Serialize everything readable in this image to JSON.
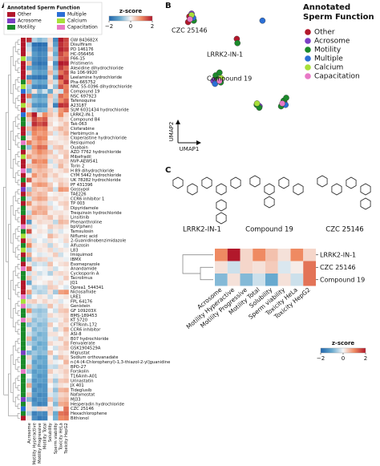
{
  "panel_labels": [
    "A",
    "B",
    "C"
  ],
  "chart_data": [
    {
      "type": "heatmap",
      "legend_title": "Annotated Sperm Function",
      "functions": [
        {
          "name": "Other",
          "color": "#b2182b"
        },
        {
          "name": "Acrosome",
          "color": "#7b3fc4"
        },
        {
          "name": "Motility",
          "color": "#1b8a2a"
        },
        {
          "name": "Multiple",
          "color": "#2b6fd6"
        },
        {
          "name": "Calcium",
          "color": "#a8e03a"
        },
        {
          "name": "Capacitation",
          "color": "#e879c6"
        }
      ],
      "colorbar": {
        "title": "z-score",
        "lim": [
          -2,
          2
        ],
        "ticks": [
          {
            "value": -2,
            "label": "−2"
          },
          0,
          2
        ]
      },
      "columns": [
        "Acrosome",
        "Motility Hyperactive",
        "Motility Progressive",
        "Motility Total",
        "Solubility",
        "Sperm viability",
        "Toxicity HeLa",
        "Toxicity HepG2"
      ],
      "rows": [
        "GW 843682X",
        "Disulfiram",
        "PD 146176",
        "HC-056456",
        "F66-15",
        "Pristimerin",
        "Alexidine dihydrochloride",
        "Ro 106-9920",
        "Leelamine hydrochloride",
        "Pha-665752",
        "NNC 55-0396 dihydrochloride",
        "Compound 19",
        "NSC 697923",
        "Tafenoquine",
        "A23187",
        "SLM 6031434 hydrochloride",
        "LRRK2-IN-1",
        "Compound B4",
        "Tak-063",
        "Clofarabine",
        "Herbimycin a",
        "Cloperastine hydrochloride",
        "Resiquimod",
        "Ouabain",
        "AZD 7762 hydrochloride",
        "Mibefradil",
        "NVP-AEW541",
        "Torin 2",
        "H 89 dihydrochloride",
        "CYM 5442 hydrochloride",
        "UK 78282 hydrochloride",
        "PF 431396",
        "Gossypol",
        "TAE226",
        "CCR6 inhibitor 1",
        "TP 003",
        "Dipyridamole",
        "Trequinsin hydrochloride",
        "Linsitinib",
        "Phenanthroline",
        "bpV(phen)",
        "Tamsulosin",
        "Niflumic acid",
        "2-Guanidinobenzimidazole",
        "Alfuzosin",
        "L83",
        "Imiquimod",
        "IBMX",
        "Esomeprazole",
        "Anandamide",
        "Cyclosporin A",
        "Tacrolimus",
        "JQ1",
        "Oprea1_544341",
        "Niclosamide",
        "LRE1",
        "FPL 64176",
        "Genistein",
        "GF 109203X",
        "BMS-189453",
        "KT 5720",
        "CFTRinh-172",
        "CCR6 inhibitor",
        "ASI-8",
        "B07 hydrochloride",
        "Fenvalerate",
        "GSK1904529A",
        "Miglustat",
        "Sodium orthovanadate",
        "n-[4-(4-Chlorophenyl)-1,3-thiazol-2-yl]guanidine",
        "BPO-27",
        "Forskolin",
        "T16Ainh-A01",
        "Urinastatin",
        "JX 401",
        "Tideglusib",
        "Nafamostat",
        "MJ33",
        "Hesperadin hydrochloride",
        "CZC 25146",
        "Hexachlorophene",
        "Bithionol"
      ],
      "row_functions": [
        "Other",
        "Other",
        "Other",
        "Other",
        "Calcium",
        "Other",
        "Other",
        "Other",
        "Other",
        "Motility",
        "Calcium",
        "Multiple",
        "Other",
        "Other",
        "Calcium",
        "Other",
        "Multiple",
        "Motility",
        "Motility",
        "Other",
        "Other",
        "Motility",
        "Capacitation",
        "Motility",
        "Other",
        "Calcium",
        "Other",
        "Other",
        "Capacitation",
        "Other",
        "Motility",
        "Other",
        "Acrosome",
        "Other",
        "Motility",
        "Other",
        "Motility",
        "Motility",
        "Other",
        "Other",
        "Capacitation",
        "Motility",
        "Calcium",
        "Other",
        "Motility",
        "Calcium",
        "Other",
        "Motility",
        "Other",
        "Capacitation",
        "Motility",
        "Motility",
        "Other",
        "Other",
        "Other",
        "Capacitation",
        "Calcium",
        "Capacitation",
        "Motility",
        "Motility",
        "Capacitation",
        "Motility",
        "Motility",
        "Motility",
        "Motility",
        "Motility",
        "Motility",
        "Acrosome",
        "Motility",
        "Motility",
        "Motility",
        "Capacitation",
        "Motility",
        "Motility",
        "Motility",
        "Motility",
        "Motility",
        "Acrosome",
        "Motility",
        "Multiple",
        "Motility",
        "Other"
      ],
      "values": [
        [
          1.8,
          -0.5,
          -0.8,
          -0.6,
          0.3,
          -1.5,
          2.0,
          1.6
        ],
        [
          -0.5,
          -1.8,
          -1.9,
          -1.8,
          0.2,
          -1.2,
          1.8,
          1.5
        ],
        [
          -0.3,
          -1.5,
          -1.7,
          -1.6,
          0.5,
          -0.8,
          1.9,
          1.7
        ],
        [
          0.2,
          -1.2,
          -1.5,
          -1.4,
          0.1,
          -1.0,
          1.6,
          1.2
        ],
        [
          -0.8,
          -1.4,
          -1.6,
          -1.5,
          0.4,
          -0.6,
          1.4,
          1.5
        ],
        [
          0.6,
          -1.6,
          -1.8,
          -1.7,
          0.0,
          -1.4,
          2.0,
          1.9
        ],
        [
          -1.0,
          -1.3,
          -1.5,
          -1.4,
          0.3,
          -0.9,
          1.7,
          1.3
        ],
        [
          0.3,
          -1.0,
          -1.2,
          -1.1,
          0.6,
          -0.5,
          1.2,
          1.6
        ],
        [
          -1.5,
          -1.7,
          -1.8,
          -1.7,
          0.2,
          -1.1,
          1.9,
          1.4
        ],
        [
          0.8,
          -0.9,
          -1.1,
          -1.0,
          0.4,
          -0.3,
          1.1,
          1.8
        ],
        [
          -0.6,
          -1.5,
          -1.6,
          -1.5,
          0.1,
          -0.7,
          1.5,
          1.1
        ],
        [
          -0.8,
          0.2,
          -0.8,
          -0.3,
          -1.0,
          0.2,
          -0.3,
          1.2
        ],
        [
          1.2,
          -1.1,
          -1.3,
          -1.2,
          0.5,
          -0.4,
          1.3,
          1.0
        ],
        [
          -0.4,
          -0.8,
          -1.0,
          -0.9,
          0.3,
          -0.6,
          1.0,
          1.4
        ],
        [
          0.5,
          -1.3,
          -1.4,
          -1.3,
          0.2,
          -1.6,
          1.8,
          1.7
        ],
        [
          -0.2,
          -0.6,
          -0.9,
          -0.8,
          0.4,
          -0.3,
          0.9,
          1.2
        ],
        [
          1.0,
          2.0,
          0.3,
          1.0,
          0.5,
          0.2,
          1.0,
          0.3
        ],
        [
          0.4,
          1.6,
          1.2,
          1.4,
          0.2,
          0.1,
          0.4,
          0.2
        ],
        [
          -0.3,
          1.8,
          1.5,
          1.7,
          0.3,
          0.0,
          0.2,
          0.5
        ],
        [
          0.6,
          1.2,
          1.0,
          1.1,
          0.1,
          0.3,
          0.6,
          0.4
        ],
        [
          -0.5,
          1.0,
          0.8,
          0.9,
          0.4,
          -0.2,
          0.3,
          0.6
        ],
        [
          0.2,
          0.8,
          1.1,
          1.0,
          0.0,
          0.1,
          0.2,
          0.3
        ],
        [
          1.1,
          0.6,
          0.9,
          0.7,
          0.3,
          0.2,
          0.1,
          0.2
        ],
        [
          -0.7,
          0.9,
          1.3,
          1.2,
          -0.2,
          0.4,
          0.5,
          0.1
        ],
        [
          0.3,
          0.7,
          1.0,
          0.8,
          0.5,
          -0.1,
          0.3,
          0.4
        ],
        [
          0.8,
          0.5,
          0.7,
          0.6,
          0.2,
          0.3,
          0.0,
          0.5
        ],
        [
          -0.2,
          1.1,
          0.9,
          1.0,
          -0.3,
          0.2,
          0.4,
          0.3
        ],
        [
          0.5,
          0.6,
          0.8,
          0.7,
          0.1,
          -0.2,
          0.6,
          0.2
        ],
        [
          -0.9,
          0.4,
          0.6,
          0.5,
          0.3,
          0.1,
          0.2,
          0.4
        ],
        [
          0.1,
          0.9,
          0.5,
          0.7,
          0.2,
          0.4,
          0.1,
          0.0
        ],
        [
          1.4,
          0.3,
          0.5,
          0.4,
          -0.1,
          0.2,
          0.3,
          0.2
        ],
        [
          0.0,
          0.7,
          0.9,
          0.8,
          0.4,
          0.0,
          0.5,
          0.3
        ],
        [
          -0.6,
          0.5,
          0.3,
          0.4,
          0.6,
          -0.3,
          0.9,
          0.8
        ],
        [
          0.7,
          0.4,
          0.6,
          0.5,
          0.0,
          0.1,
          0.2,
          0.1
        ],
        [
          -0.3,
          0.6,
          0.8,
          0.7,
          0.2,
          0.3,
          0.1,
          0.2
        ],
        [
          0.9,
          0.2,
          0.4,
          0.3,
          -0.2,
          0.0,
          0.3,
          0.4
        ],
        [
          0.2,
          0.5,
          0.7,
          0.6,
          0.3,
          -0.1,
          0.0,
          0.3
        ],
        [
          -0.4,
          0.8,
          0.6,
          0.7,
          0.1,
          0.2,
          0.2,
          0.1
        ],
        [
          0.6,
          0.3,
          0.2,
          0.3,
          0.5,
          0.1,
          0.4,
          0.2
        ],
        [
          -1.2,
          0.1,
          0.3,
          0.2,
          0.2,
          -0.4,
          0.6,
          0.5
        ],
        [
          0.3,
          -0.2,
          0.1,
          0.0,
          0.4,
          0.2,
          0.3,
          0.1
        ],
        [
          1.5,
          0.0,
          0.2,
          0.1,
          -0.3,
          0.1,
          -0.2,
          0.0
        ],
        [
          -0.2,
          0.1,
          -0.1,
          0.0,
          0.6,
          0.3,
          0.1,
          0.2
        ],
        [
          0.4,
          -0.3,
          0.0,
          -0.2,
          0.2,
          0.0,
          -0.1,
          0.3
        ],
        [
          1.0,
          0.2,
          0.1,
          0.2,
          -0.4,
          0.2,
          0.0,
          -0.2
        ],
        [
          -0.5,
          -0.1,
          0.2,
          0.1,
          0.3,
          -0.2,
          0.2,
          0.1
        ],
        [
          0.7,
          0.0,
          -0.2,
          -0.1,
          0.1,
          0.4,
          -0.3,
          0.0
        ],
        [
          -0.8,
          0.3,
          0.4,
          0.3,
          -0.2,
          0.1,
          0.1,
          -0.1
        ],
        [
          0.2,
          -0.4,
          -0.2,
          -0.3,
          0.5,
          0.0,
          0.2,
          0.3
        ],
        [
          1.3,
          -0.1,
          0.0,
          -0.1,
          0.2,
          -0.3,
          0.0,
          0.1
        ],
        [
          -0.3,
          0.2,
          -0.3,
          -0.1,
          -0.5,
          0.2,
          0.3,
          0.2
        ],
        [
          0.5,
          -0.2,
          0.1,
          0.0,
          0.0,
          0.1,
          -0.1,
          0.4
        ],
        [
          -1.0,
          0.1,
          0.0,
          0.1,
          0.3,
          -0.1,
          0.2,
          0.0
        ],
        [
          0.1,
          -0.5,
          -0.3,
          -0.4,
          0.4,
          0.3,
          0.0,
          -0.2
        ],
        [
          0.8,
          -0.3,
          -0.5,
          -0.4,
          0.2,
          -0.6,
          0.8,
          0.9
        ],
        [
          -0.6,
          0.0,
          0.2,
          0.1,
          -0.3,
          0.0,
          0.1,
          0.2
        ],
        [
          0.3,
          0.4,
          0.1,
          0.3,
          0.1,
          0.2,
          -0.2,
          0.0
        ],
        [
          -0.4,
          -0.2,
          -0.4,
          -0.3,
          0.5,
          -0.1,
          0.3,
          0.1
        ],
        [
          0.9,
          -0.6,
          -0.7,
          -0.6,
          0.0,
          -0.3,
          0.4,
          0.5
        ],
        [
          -0.2,
          -0.4,
          -0.6,
          -0.5,
          0.3,
          0.1,
          0.2,
          0.3
        ],
        [
          0.4,
          -0.7,
          -0.5,
          -0.6,
          -0.2,
          -0.2,
          0.1,
          0.4
        ],
        [
          -0.7,
          -0.5,
          -0.8,
          -0.7,
          0.4,
          0.0,
          0.3,
          0.2
        ],
        [
          0.2,
          -0.8,
          -0.6,
          -0.7,
          0.1,
          -0.4,
          0.2,
          0.6
        ],
        [
          -0.3,
          -0.6,
          -0.9,
          -0.8,
          0.2,
          0.2,
          0.0,
          0.3
        ],
        [
          0.6,
          -0.9,
          -0.7,
          -0.8,
          -0.1,
          -0.2,
          0.4,
          0.2
        ],
        [
          -0.5,
          -0.7,
          -1.0,
          -0.9,
          0.3,
          0.1,
          0.1,
          0.5
        ],
        [
          0.1,
          -1.0,
          -0.8,
          -0.9,
          0.0,
          -0.3,
          0.3,
          0.4
        ],
        [
          -0.9,
          -0.6,
          -0.8,
          -0.7,
          0.5,
          0.0,
          0.2,
          0.1
        ],
        [
          0.3,
          -0.8,
          -1.1,
          -1.0,
          0.1,
          -0.5,
          0.5,
          0.3
        ],
        [
          -0.2,
          -1.1,
          -0.9,
          -1.0,
          0.2,
          -0.1,
          0.0,
          0.6
        ],
        [
          0.5,
          -0.9,
          -1.2,
          -1.1,
          -0.3,
          -0.4,
          0.3,
          0.2
        ],
        [
          -0.6,
          -1.2,
          -1.0,
          -1.1,
          0.4,
          0.1,
          0.2,
          0.4
        ],
        [
          0.0,
          -1.0,
          -1.3,
          -1.2,
          0.1,
          -0.2,
          0.1,
          0.3
        ],
        [
          -0.4,
          -1.3,
          -1.1,
          -1.2,
          0.3,
          -0.6,
          0.4,
          0.5
        ],
        [
          0.7,
          -1.1,
          -1.4,
          -1.3,
          0.0,
          -0.3,
          0.2,
          0.1
        ],
        [
          -0.1,
          -1.4,
          -1.2,
          -1.3,
          0.2,
          -0.7,
          0.6,
          0.7
        ],
        [
          0.4,
          -1.2,
          -1.5,
          -1.4,
          -0.2,
          -0.4,
          0.3,
          0.4
        ],
        [
          -0.8,
          -1.5,
          -1.3,
          -1.4,
          0.5,
          -0.5,
          0.5,
          0.6
        ],
        [
          0.2,
          -1.3,
          -1.6,
          -1.5,
          0.1,
          -0.8,
          0.7,
          0.8
        ],
        [
          0.2,
          -0.3,
          0.3,
          0.2,
          0.4,
          -0.2,
          0.1,
          1.2
        ],
        [
          -0.5,
          -1.6,
          -1.4,
          -1.5,
          0.3,
          -1.0,
          1.2,
          1.3
        ],
        [
          0.1,
          -1.4,
          -1.7,
          -1.6,
          0.0,
          -0.9,
          1.0,
          1.1
        ]
      ]
    },
    {
      "type": "scatter",
      "legend_title": "Annotated Sperm Function",
      "xlabel": "UMAP1",
      "ylabel": "UMAP2",
      "xlim": [
        0,
        10
      ],
      "ylim": [
        0,
        10
      ],
      "annotations": [
        "CZC 25146",
        "LRRK2-IN-1",
        "Compound 19"
      ],
      "series": [
        {
          "name": "Other",
          "color": "#b2182b",
          "x": [
            1.4,
            1.6,
            1.3,
            8.8,
            5.1,
            3.5
          ],
          "y": [
            9.4,
            9.2,
            9.0,
            3.3,
            7.8,
            5.0
          ]
        },
        {
          "name": "Acrosome",
          "color": "#7b3fc4",
          "x": [
            1.5,
            6.8,
            3.2
          ],
          "y": [
            9.6,
            3.0,
            4.8
          ]
        },
        {
          "name": "Motility",
          "color": "#1b8a2a",
          "x": [
            3.3,
            3.5,
            3.7,
            3.6,
            6.5,
            6.7,
            8.6,
            8.4,
            8.8,
            5.0,
            1.6
          ],
          "y": [
            5.2,
            4.9,
            4.7,
            5.4,
            3.1,
            2.9,
            3.4,
            3.0,
            3.6,
            7.5,
            9.1
          ]
        },
        {
          "name": "Multiple",
          "color": "#2b6fd6",
          "x": [
            1.7,
            3.4,
            7.1,
            8.9
          ],
          "y": [
            9.3,
            4.6,
            9.1,
            3.1
          ]
        },
        {
          "name": "Calcium",
          "color": "#a8e03a",
          "x": [
            1.5,
            3.8,
            6.6
          ],
          "y": [
            9.5,
            5.0,
            3.2
          ]
        },
        {
          "name": "Capacitation",
          "color": "#e879c6",
          "x": [
            1.3,
            3.6,
            8.5
          ],
          "y": [
            9.2,
            4.8,
            3.2
          ]
        }
      ]
    },
    {
      "type": "heatmap-small",
      "structure_labels": [
        "LRRK2-IN-1",
        "Compound 19",
        "CZC 25146"
      ],
      "columns": [
        "Acrosome",
        "Motility Hyperactive",
        "Motility Progressive",
        "Motility Total",
        "Solubility",
        "Sperm viability",
        "Toxicity HeLa",
        "Toxicity HepG2"
      ],
      "rows": [
        "LRRK2-IN-1",
        "CZC 25146",
        "Compound 19"
      ],
      "values": [
        [
          1.0,
          2.0,
          0.3,
          1.0,
          0.5,
          0.2,
          1.0,
          0.3
        ],
        [
          0.2,
          -0.3,
          0.3,
          0.2,
          0.4,
          -0.2,
          0.1,
          1.2
        ],
        [
          -0.8,
          0.2,
          -0.8,
          -0.3,
          -1.0,
          0.2,
          -0.3,
          1.2
        ]
      ],
      "colorbar": {
        "title": "z-score",
        "lim": [
          -2,
          2
        ],
        "ticks": [
          {
            "value": -2,
            "label": "−2"
          },
          0,
          2
        ]
      }
    }
  ]
}
